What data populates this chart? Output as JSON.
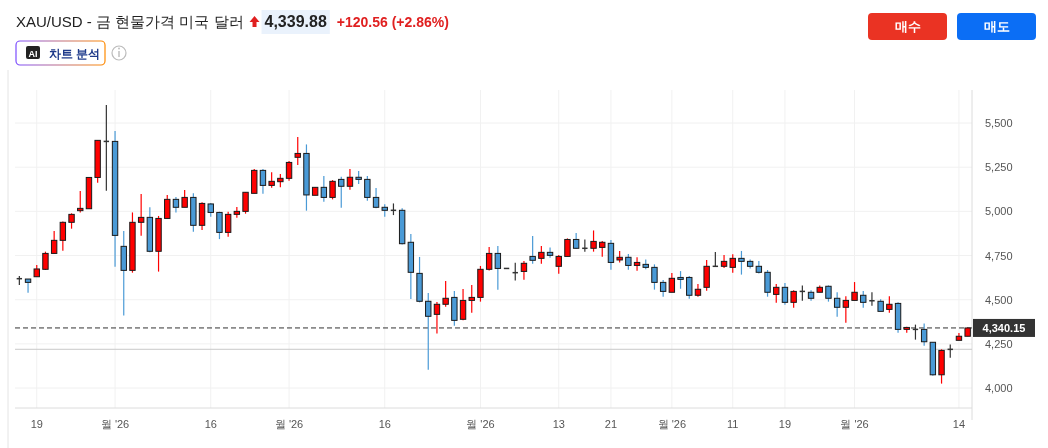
{
  "chart_data": {
    "type": "candlestick",
    "title": "XAU/USD - 금 현물가격 미국 달러",
    "annotations": [
      "4,339.88",
      "+120.56 (+2.86%)",
      "AI",
      "차트 분석",
      "매수",
      "매도"
    ],
    "categories": [
      null,
      null,
      "19",
      null,
      null,
      null,
      null,
      null,
      null,
      null,
      null,
      "월 '26",
      null,
      null,
      null,
      null,
      null,
      null,
      null,
      null,
      null,
      null,
      "16",
      null,
      null,
      null,
      null,
      null,
      null,
      null,
      null,
      "월 '26",
      null,
      null,
      null,
      null,
      null,
      null,
      null,
      null,
      null,
      null,
      "16",
      null,
      null,
      null,
      null,
      null,
      null,
      null,
      null,
      null,
      null,
      "월 '26",
      null,
      null,
      null,
      null,
      null,
      null,
      null,
      null,
      "13",
      null,
      null,
      null,
      null,
      null,
      "21",
      null,
      null,
      null,
      null,
      null,
      null,
      "월 '26",
      null,
      null,
      null,
      null,
      null,
      null,
      "11",
      null,
      null,
      null,
      null,
      null,
      "19",
      null,
      null,
      null,
      null,
      null,
      null,
      null,
      "월 '26",
      null,
      null,
      null,
      null,
      null,
      null,
      null,
      null,
      null,
      null,
      null,
      "14",
      null
    ],
    "ohlc": [
      [
        4619,
        4634,
        4583,
        4619
      ],
      [
        4617,
        4617,
        4540,
        4598
      ],
      [
        4630,
        4696,
        4630,
        4674
      ],
      [
        4672,
        4772,
        4668,
        4762
      ],
      [
        4762,
        4889,
        4762,
        4836
      ],
      [
        4836,
        4942,
        4777,
        4938
      ],
      [
        4938,
        4989,
        4902,
        4983
      ],
      [
        5004,
        5115,
        4993,
        5017
      ],
      [
        5015,
        5192,
        5013,
        5192
      ],
      [
        5192,
        5402,
        5162,
        5402
      ],
      [
        5396,
        5602,
        5117,
        5396
      ],
      [
        5396,
        5455,
        4687,
        4864
      ],
      [
        4802,
        4889,
        4410,
        4666
      ],
      [
        4666,
        4994,
        4653,
        4938
      ],
      [
        4938,
        5098,
        4862,
        4966
      ],
      [
        4966,
        5023,
        4768,
        4774
      ],
      [
        4774,
        4974,
        4659,
        4960
      ],
      [
        4960,
        5093,
        4960,
        5068
      ],
      [
        5068,
        5081,
        4993,
        5023
      ],
      [
        5023,
        5121,
        5023,
        5079
      ],
      [
        5079,
        5102,
        4885,
        4921
      ],
      [
        4921,
        5051,
        4894,
        5045
      ],
      [
        5042,
        5047,
        4970,
        4994
      ],
      [
        4994,
        4998,
        4843,
        4881
      ],
      [
        4881,
        4998,
        4857,
        4983
      ],
      [
        4983,
        5025,
        4964,
        5000
      ],
      [
        5000,
        5108,
        4987,
        5108
      ],
      [
        5102,
        5240,
        5102,
        5232
      ],
      [
        5232,
        5240,
        5100,
        5147
      ],
      [
        5147,
        5221,
        5134,
        5170
      ],
      [
        5168,
        5211,
        5136,
        5187
      ],
      [
        5187,
        5285,
        5174,
        5277
      ],
      [
        5306,
        5421,
        5262,
        5328
      ],
      [
        5328,
        5379,
        5004,
        5093
      ],
      [
        5091,
        5136,
        5091,
        5136
      ],
      [
        5136,
        5200,
        5055,
        5079
      ],
      [
        5079,
        5177,
        5068,
        5170
      ],
      [
        5181,
        5196,
        5021,
        5142
      ],
      [
        5142,
        5240,
        5123,
        5193
      ],
      [
        5193,
        5228,
        5155,
        5181
      ],
      [
        5181,
        5200,
        5060,
        5079
      ],
      [
        5079,
        5132,
        5017,
        5023
      ],
      [
        5023,
        5040,
        4970,
        5006
      ],
      [
        5006,
        5045,
        4979,
        5006
      ],
      [
        5006,
        5017,
        4813,
        4817
      ],
      [
        4825,
        4872,
        4504,
        4655
      ],
      [
        4649,
        4742,
        4485,
        4491
      ],
      [
        4491,
        4538,
        4104,
        4406
      ],
      [
        4417,
        4487,
        4308,
        4474
      ],
      [
        4474,
        4606,
        4460,
        4508
      ],
      [
        4513,
        4549,
        4353,
        4383
      ],
      [
        4389,
        4560,
        4383,
        4496
      ],
      [
        4496,
        4583,
        4426,
        4513
      ],
      [
        4513,
        4691,
        4489,
        4672
      ],
      [
        4672,
        4798,
        4666,
        4762
      ],
      [
        4762,
        4804,
        4557,
        4677
      ],
      [
        4677,
        4677,
        4677,
        4677
      ],
      [
        4653,
        4709,
        4608,
        4653
      ],
      [
        4660,
        4719,
        4613,
        4706
      ],
      [
        4745,
        4860,
        4704,
        4723
      ],
      [
        4734,
        4804,
        4704,
        4768
      ],
      [
        4768,
        4796,
        4738,
        4751
      ],
      [
        4689,
        4753,
        4647,
        4745
      ],
      [
        4745,
        4847,
        4745,
        4841
      ],
      [
        4841,
        4877,
        4787,
        4791
      ],
      [
        4791,
        4841,
        4772,
        4791
      ],
      [
        4791,
        4892,
        4772,
        4830
      ],
      [
        4796,
        4832,
        4743,
        4825
      ],
      [
        4819,
        4838,
        4670,
        4711
      ],
      [
        4725,
        4776,
        4711,
        4740
      ],
      [
        4740,
        4759,
        4670,
        4694
      ],
      [
        4694,
        4740,
        4664,
        4711
      ],
      [
        4700,
        4728,
        4672,
        4683
      ],
      [
        4683,
        4700,
        4557,
        4598
      ],
      [
        4598,
        4611,
        4517,
        4547
      ],
      [
        4542,
        4651,
        4542,
        4621
      ],
      [
        4626,
        4662,
        4562,
        4615
      ],
      [
        4626,
        4634,
        4506,
        4525
      ],
      [
        4525,
        4589,
        4517,
        4559
      ],
      [
        4570,
        4725,
        4551,
        4689
      ],
      [
        4689,
        4770,
        4689,
        4689
      ],
      [
        4689,
        4753,
        4679,
        4717
      ],
      [
        4683,
        4757,
        4653,
        4734
      ],
      [
        4734,
        4776,
        4642,
        4717
      ],
      [
        4717,
        4728,
        4676,
        4689
      ],
      [
        4689,
        4719,
        4649,
        4655
      ],
      [
        4655,
        4668,
        4517,
        4542
      ],
      [
        4530,
        4589,
        4483,
        4570
      ],
      [
        4570,
        4594,
        4472,
        4485
      ],
      [
        4485,
        4553,
        4455,
        4547
      ],
      [
        4547,
        4581,
        4494,
        4547
      ],
      [
        4542,
        4553,
        4494,
        4508
      ],
      [
        4542,
        4581,
        4542,
        4570
      ],
      [
        4576,
        4581,
        4489,
        4508
      ],
      [
        4508,
        4542,
        4404,
        4457
      ],
      [
        4457,
        4519,
        4370,
        4496
      ],
      [
        4496,
        4600,
        4496,
        4542
      ],
      [
        4525,
        4549,
        4455,
        4485
      ],
      [
        4494,
        4542,
        4466,
        4494
      ],
      [
        4491,
        4502,
        4434,
        4434
      ],
      [
        4445,
        4519,
        4426,
        4474
      ],
      [
        4479,
        4485,
        4313,
        4332
      ],
      [
        4332,
        4347,
        4313,
        4343
      ],
      [
        4332,
        4359,
        4274,
        4332
      ],
      [
        4332,
        4366,
        4240,
        4262
      ],
      [
        4259,
        4259,
        4070,
        4075
      ],
      [
        4075,
        4219,
        4025,
        4213
      ],
      [
        4219,
        4247,
        4172,
        4219
      ],
      [
        4270,
        4311,
        4270,
        4293
      ],
      [
        4293,
        4343,
        4293,
        4340
      ]
    ],
    "colors": [
      "#333333",
      "#4a9ad6",
      "#ff0000",
      "#ff0000",
      "#ff0000",
      "#ff0000",
      "#ff0000",
      "#ff0000",
      "#ff0000",
      "#ff0000",
      "#333333",
      "#4a9ad6",
      "#4a9ad6",
      "#ff0000",
      "#ff0000",
      "#4a9ad6",
      "#ff0000",
      "#ff0000",
      "#4a9ad6",
      "#ff0000",
      "#4a9ad6",
      "#ff0000",
      "#4a9ad6",
      "#4a9ad6",
      "#ff0000",
      "#ff0000",
      "#ff0000",
      "#ff0000",
      "#4a9ad6",
      "#ff0000",
      "#ff0000",
      "#ff0000",
      "#ff0000",
      "#4a9ad6",
      "#ff0000",
      "#4a9ad6",
      "#ff0000",
      "#4a9ad6",
      "#ff0000",
      "#4a9ad6",
      "#4a9ad6",
      "#4a9ad6",
      "#4a9ad6",
      "#333333",
      "#4a9ad6",
      "#4a9ad6",
      "#4a9ad6",
      "#4a9ad6",
      "#ff0000",
      "#ff0000",
      "#4a9ad6",
      "#ff0000",
      "#ff0000",
      "#ff0000",
      "#ff0000",
      "#4a9ad6",
      "#333333",
      "#333333",
      "#ff0000",
      "#4a9ad6",
      "#ff0000",
      "#4a9ad6",
      "#ff0000",
      "#ff0000",
      "#4a9ad6",
      "#333333",
      "#ff0000",
      "#ff0000",
      "#4a9ad6",
      "#ff0000",
      "#4a9ad6",
      "#ff0000",
      "#4a9ad6",
      "#4a9ad6",
      "#4a9ad6",
      "#ff0000",
      "#4a9ad6",
      "#4a9ad6",
      "#ff0000",
      "#ff0000",
      "#333333",
      "#ff0000",
      "#ff0000",
      "#4a9ad6",
      "#4a9ad6",
      "#4a9ad6",
      "#4a9ad6",
      "#ff0000",
      "#4a9ad6",
      "#ff0000",
      "#333333",
      "#4a9ad6",
      "#ff0000",
      "#4a9ad6",
      "#4a9ad6",
      "#ff0000",
      "#ff0000",
      "#4a9ad6",
      "#333333",
      "#4a9ad6",
      "#ff0000",
      "#4a9ad6",
      "#ff0000",
      "#333333",
      "#4a9ad6",
      "#4a9ad6",
      "#ff0000",
      "#333333",
      "#ff0000",
      "#ff0000"
    ],
    "ylim": [
      3887,
      5687
    ],
    "yticks": [
      {
        "value": 4000,
        "label": "4,000"
      },
      {
        "value": 4250,
        "label": "4,250"
      },
      {
        "value": 4500,
        "label": "4,500"
      },
      {
        "value": 4750,
        "label": "4,750"
      },
      {
        "value": 5000,
        "label": "5,000"
      },
      {
        "value": 5250,
        "label": "5,250"
      },
      {
        "value": 5500,
        "label": "5,500"
      }
    ],
    "ref_lines": [
      {
        "axis": "y",
        "value": 4340.15,
        "label": "4,340.15",
        "color": "#333333",
        "line_style": "dashed"
      },
      {
        "axis": "y",
        "value": 4219.32,
        "label": null,
        "color": "#c8c8c8",
        "line_style": "solid"
      }
    ],
    "grid": true
  }
}
